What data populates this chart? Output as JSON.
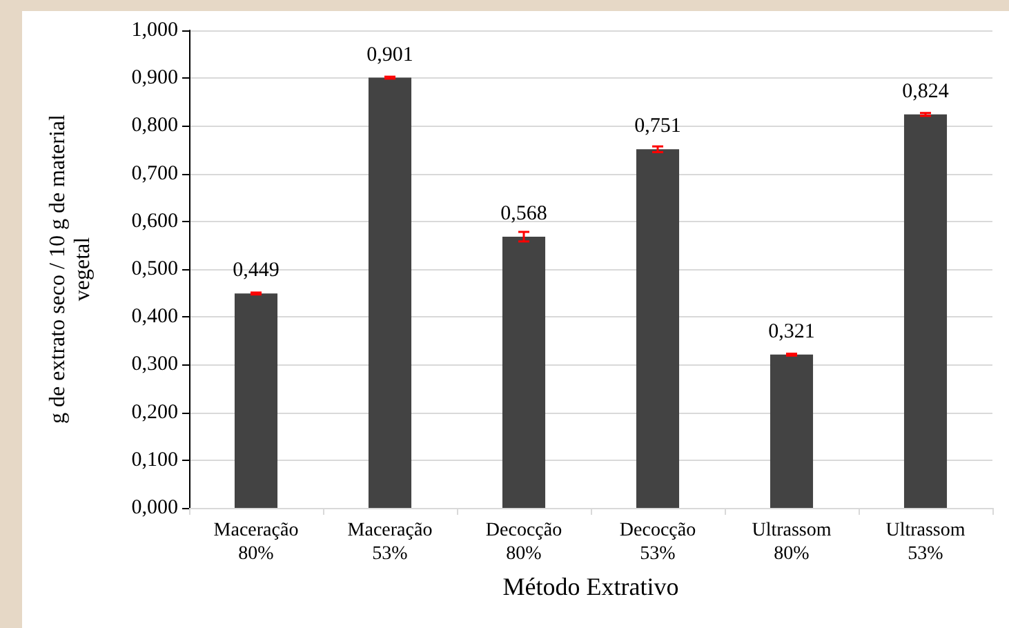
{
  "chart_data": {
    "type": "bar",
    "categories": [
      "Maceração\n80%",
      "Maceração\n53%",
      "Decocção\n80%",
      "Decocção\n53%",
      "Ultrassom\n80%",
      "Ultrassom\n53%"
    ],
    "values": [
      0.449,
      0.901,
      0.568,
      0.751,
      0.321,
      0.824
    ],
    "errors": [
      0.002,
      0.002,
      0.01,
      0.006,
      0.002,
      0.003
    ],
    "value_labels": [
      "0,449",
      "0,901",
      "0,568",
      "0,751",
      "0,321",
      "0,824"
    ],
    "color": "#434343",
    "xlabel": "Método Extrativo",
    "ylabel": "g de extrato seco / 10 g de material\nvegetal",
    "ylim": [
      0,
      1
    ],
    "yticks": [
      {
        "value": 0,
        "label": "0,000"
      },
      {
        "value": 0.1,
        "label": "0,100"
      },
      {
        "value": 0.2,
        "label": "0,200"
      },
      {
        "value": 0.3,
        "label": "0,300"
      },
      {
        "value": 0.4,
        "label": "0,400"
      },
      {
        "value": 0.5,
        "label": "0,500"
      },
      {
        "value": 0.6,
        "label": "0,600"
      },
      {
        "value": 0.7,
        "label": "0,700"
      },
      {
        "value": 0.8,
        "label": "0,800"
      },
      {
        "value": 0.9,
        "label": "0,900"
      },
      {
        "value": 1,
        "label": "1,000"
      }
    ],
    "grid": "y"
  }
}
